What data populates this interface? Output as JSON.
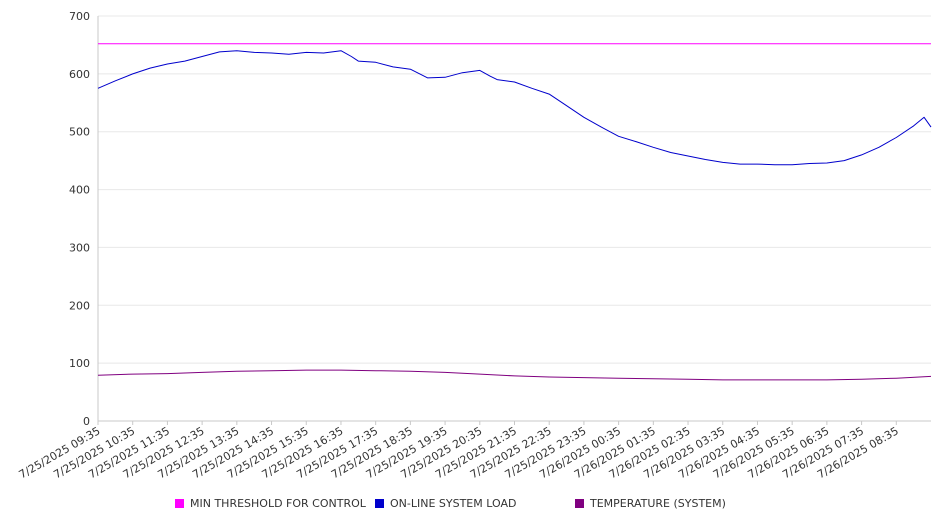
{
  "chart_data": {
    "type": "line",
    "title": "",
    "xlabel": "",
    "ylabel": "",
    "ylim": [
      0,
      700
    ],
    "yticks": [
      0,
      100,
      200,
      300,
      400,
      500,
      600,
      700
    ],
    "grid": "horizontal",
    "legend_position": "bottom",
    "x_tick_labels": [
      "7/25/2025 09:35",
      "7/25/2025 10:35",
      "7/25/2025 11:35",
      "7/25/2025 12:35",
      "7/25/2025 13:35",
      "7/25/2025 14:35",
      "7/25/2025 15:35",
      "7/25/2025 16:35",
      "7/25/2025 17:35",
      "7/25/2025 18:35",
      "7/25/2025 19:35",
      "7/25/2025 20:35",
      "7/25/2025 21:35",
      "7/25/2025 22:35",
      "7/25/2025 23:35",
      "7/26/2025 00:35",
      "7/26/2025 01:35",
      "7/26/2025 02:35",
      "7/26/2025 03:35",
      "7/26/2025 04:35",
      "7/26/2025 05:35",
      "7/26/2025 06:35",
      "7/26/2025 07:35",
      "7/26/2025 08:35"
    ],
    "x_range_hours": [
      0,
      24
    ],
    "series": [
      {
        "name": "MIN THRESHOLD FOR CONTROL",
        "color": "#ff00ff",
        "x_hours": [
          0,
          24
        ],
        "values": [
          652,
          652
        ]
      },
      {
        "name": "ON-LINE SYSTEM LOAD",
        "color": "#0000cc",
        "x_hours": [
          0,
          0.5,
          1,
          1.5,
          2,
          2.5,
          3,
          3.5,
          4,
          4.5,
          5,
          5.5,
          6,
          6.5,
          7,
          7.3,
          7.5,
          8,
          8.5,
          9,
          9.5,
          10,
          10.5,
          11,
          11.3,
          11.5,
          12,
          12.5,
          13,
          13.5,
          14,
          14.5,
          15,
          15.5,
          16,
          16.5,
          17,
          17.5,
          18,
          18.5,
          19,
          19.5,
          20,
          20.5,
          21,
          21.5,
          22,
          22.5,
          23,
          23.5,
          23.8,
          24
        ],
        "values": [
          575,
          588,
          600,
          610,
          617,
          622,
          630,
          638,
          640,
          637,
          636,
          634,
          637,
          636,
          640,
          630,
          622,
          620,
          612,
          608,
          593,
          594,
          602,
          606,
          596,
          590,
          586,
          575,
          565,
          545,
          525,
          508,
          492,
          483,
          473,
          464,
          458,
          452,
          447,
          444,
          444,
          443,
          443,
          445,
          446,
          450,
          460,
          473,
          490,
          510,
          525,
          508
        ]
      },
      {
        "name": "TEMPERATURE (SYSTEM)",
        "color": "#800080",
        "x_hours": [
          0,
          1,
          2,
          3,
          4,
          5,
          6,
          7,
          8,
          9,
          10,
          11,
          12,
          13,
          14,
          15,
          16,
          17,
          18,
          19,
          20,
          21,
          22,
          23,
          24
        ],
        "values": [
          79,
          81,
          82,
          84,
          86,
          87,
          88,
          88,
          87,
          86,
          84,
          81,
          78,
          76,
          75,
          74,
          73,
          72,
          71,
          71,
          71,
          71,
          72,
          74,
          77
        ]
      }
    ]
  }
}
